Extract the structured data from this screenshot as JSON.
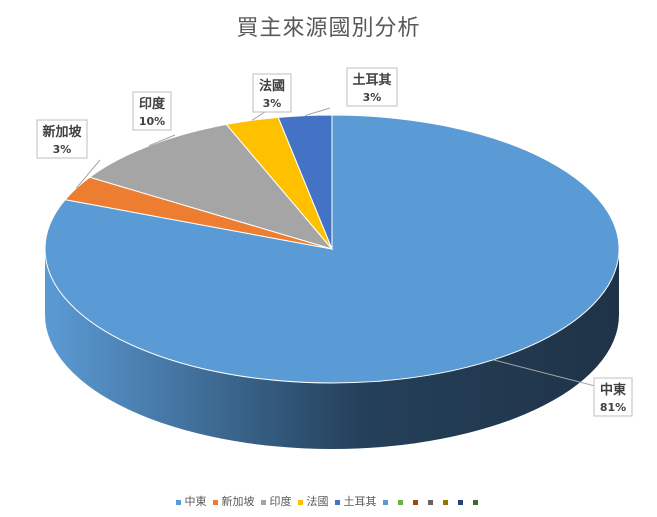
{
  "chart_data": {
    "type": "pie",
    "title": "買主來源國別分析",
    "slices": [
      {
        "name": "中東",
        "value": 81,
        "label": "81%",
        "color": "#5B9BD5",
        "side": "#24405A"
      },
      {
        "name": "新加坡",
        "value": 3,
        "label": "3%",
        "color": "#ED7D31",
        "side": "#B05A20"
      },
      {
        "name": "印度",
        "value": 10,
        "label": "10%",
        "color": "#A5A5A5",
        "side": "#7A7A7A"
      },
      {
        "name": "法國",
        "value": 3,
        "label": "3%",
        "color": "#FFC000",
        "side": "#C08F00"
      },
      {
        "name": "土耳其",
        "value": 3,
        "label": "3%",
        "color": "#4472C4",
        "side": "#2E4F8A"
      }
    ],
    "extra_legend_colors": [
      "#5B9BD5",
      "#70AD47",
      "#9E480E",
      "#636363",
      "#997300",
      "#264478",
      "#43682B"
    ],
    "legend_position": "bottom",
    "style": "3d-pie"
  }
}
